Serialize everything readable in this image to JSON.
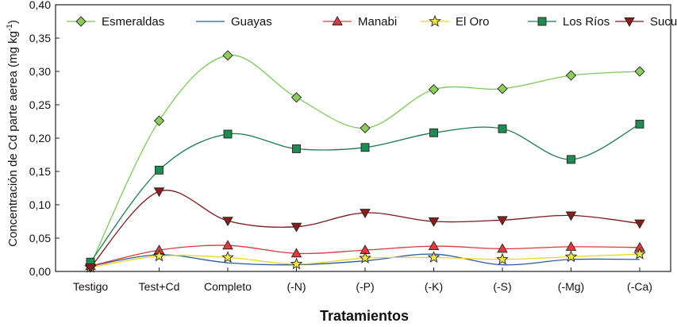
{
  "chart_data": {
    "type": "line",
    "title": "",
    "xlabel": "Tratamientos",
    "ylabel": "Concentración de Cd parte aerea (mg kg",
    "ylabel_superscript": "-1",
    "ylabel_suffix": ")",
    "ylim": [
      0,
      0.4
    ],
    "yticks": [
      "0,00",
      "0,05",
      "0,10",
      "0,15",
      "0,20",
      "0,25",
      "0,30",
      "0,35",
      "0,40"
    ],
    "ytick_values": [
      0,
      0.05,
      0.1,
      0.15,
      0.2,
      0.25,
      0.3,
      0.35,
      0.4
    ],
    "categories": [
      "Testigo",
      "Test+Cd",
      "Completo",
      "(-N)",
      "(-P)",
      "(-K)",
      "(-S)",
      "(-Mg)",
      "(-Ca)"
    ],
    "grid": false,
    "legend_position": "top",
    "series": [
      {
        "name": "Esmeraldas",
        "line_color": "#7ec85a",
        "marker": "diamond",
        "marker_fill": "#8fcc5e",
        "values": [
          0.01,
          0.226,
          0.324,
          0.261,
          0.215,
          0.273,
          0.274,
          0.294,
          0.3
        ]
      },
      {
        "name": "Guayas",
        "line_color": "#2a5b9e",
        "marker": "none",
        "marker_fill": "#2a5b9e",
        "values": [
          0.008,
          0.025,
          0.013,
          0.01,
          0.016,
          0.026,
          0.01,
          0.018,
          0.018
        ]
      },
      {
        "name": "Manabi",
        "line_color": "#d93a3a",
        "marker": "triangle-up",
        "marker_fill": "#e23b3b",
        "values": [
          0.008,
          0.032,
          0.039,
          0.027,
          0.032,
          0.038,
          0.034,
          0.037,
          0.036
        ]
      },
      {
        "name": "El Oro",
        "line_color": "#e8d820",
        "marker": "star",
        "marker_fill": "#f2e640",
        "values": [
          0.006,
          0.023,
          0.021,
          0.011,
          0.02,
          0.021,
          0.018,
          0.022,
          0.026
        ]
      },
      {
        "name": "Los Ríos",
        "line_color": "#1d7a4e",
        "marker": "square",
        "marker_fill": "#1f8a52",
        "values": [
          0.014,
          0.152,
          0.206,
          0.184,
          0.186,
          0.208,
          0.214,
          0.168,
          0.221
        ]
      },
      {
        "name": "Sucumbíos",
        "line_color": "#7a1a1a",
        "marker": "triangle-down",
        "marker_fill": "#8a1c1c",
        "values": [
          0.006,
          0.12,
          0.076,
          0.067,
          0.088,
          0.075,
          0.077,
          0.084,
          0.072
        ]
      }
    ]
  }
}
